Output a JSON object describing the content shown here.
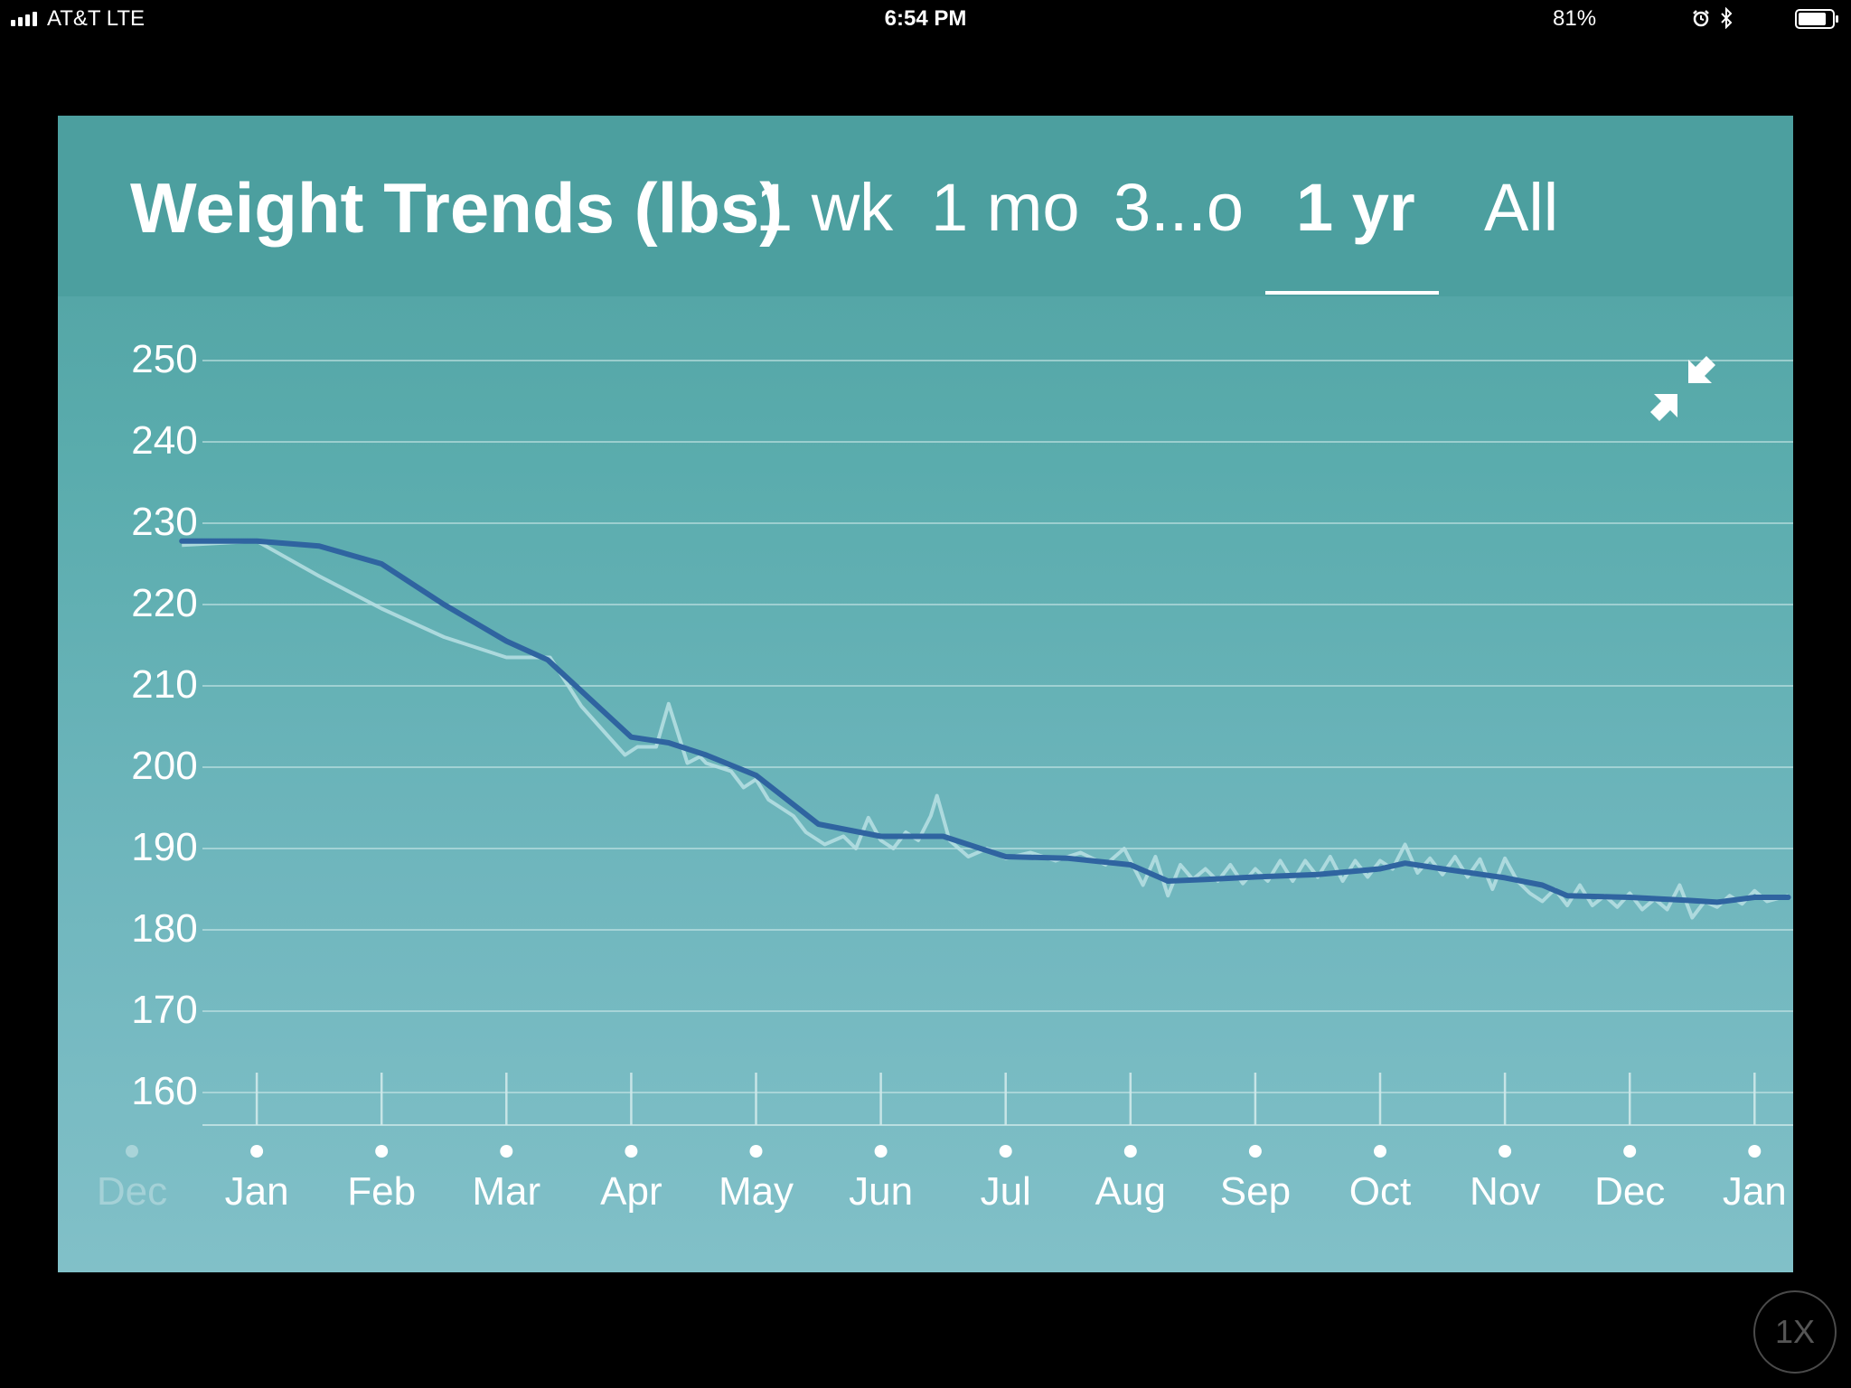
{
  "status_bar": {
    "carrier": "AT&T   LTE",
    "time": "6:54 PM",
    "battery_percent": "81%",
    "icons": [
      "signal-icon",
      "alarm-icon",
      "bluetooth-icon",
      "battery-icon"
    ]
  },
  "header": {
    "title": "Weight Trends (lbs)",
    "tabs": [
      {
        "label": "1 wk",
        "active": false
      },
      {
        "label": "1 mo",
        "active": false
      },
      {
        "label": "3...o",
        "active": false
      },
      {
        "label": "1 yr",
        "active": true
      },
      {
        "label": "All",
        "active": false
      }
    ]
  },
  "controls": {
    "collapse_icon": "collapse-arrows-icon",
    "speed_label": "1X"
  },
  "colors": {
    "header_bg": "#4c9f9f",
    "trend_line": "#2f64a0",
    "raw_line": "#b9e0e4",
    "gridline": "#cfe9ea"
  },
  "chart_data": {
    "type": "line",
    "title": "Weight Trends (lbs)",
    "ylim": [
      160,
      250
    ],
    "yticks": [
      250,
      240,
      230,
      220,
      210,
      200,
      190,
      180,
      170,
      160
    ],
    "x_tick_labels": [
      "Dec",
      "Jan",
      "Feb",
      "Mar",
      "Apr",
      "May",
      "Jun",
      "Jul",
      "Aug",
      "Sep",
      "Oct",
      "Nov",
      "Dec",
      "Jan"
    ],
    "xlim": [
      0.4,
      13.27
    ],
    "grid": true,
    "series": [
      {
        "role": "trend",
        "x": [
          0.4,
          1.0,
          1.5,
          2.0,
          2.5,
          3.0,
          3.33,
          4.0,
          4.3,
          4.6,
          5.0,
          5.5,
          6.0,
          6.5,
          7.0,
          7.5,
          8.0,
          8.3,
          8.6,
          9.0,
          9.5,
          10.0,
          10.2,
          10.5,
          11.0,
          11.3,
          11.5,
          12.0,
          12.5,
          12.7,
          13.0,
          13.27
        ],
        "y": [
          227.8,
          227.8,
          227.2,
          225,
          220,
          215.5,
          213.2,
          203.7,
          203,
          201.5,
          199,
          193,
          191.5,
          191.5,
          189,
          188.8,
          188,
          186,
          186.2,
          186.5,
          186.8,
          187.5,
          188.2,
          187.5,
          186.4,
          185.5,
          184.2,
          184,
          183.6,
          183.4,
          184,
          184
        ]
      },
      {
        "role": "weigh-ins",
        "x": [
          0.4,
          1.0,
          1.5,
          2.0,
          2.5,
          3.0,
          3.35,
          3.6,
          3.95,
          4.05,
          4.2,
          4.3,
          4.45,
          4.55,
          4.6,
          4.8,
          4.9,
          5.0,
          5.1,
          5.2,
          5.3,
          5.4,
          5.55,
          5.7,
          5.8,
          5.9,
          6.0,
          6.1,
          6.2,
          6.3,
          6.4,
          6.45,
          6.55,
          6.7,
          6.85,
          7.0,
          7.2,
          7.4,
          7.6,
          7.8,
          7.95,
          8.1,
          8.2,
          8.3,
          8.4,
          8.5,
          8.6,
          8.7,
          8.8,
          8.9,
          9.0,
          9.1,
          9.2,
          9.3,
          9.4,
          9.5,
          9.6,
          9.7,
          9.8,
          9.9,
          10.0,
          10.1,
          10.2,
          10.3,
          10.4,
          10.5,
          10.6,
          10.7,
          10.8,
          10.9,
          11.0,
          11.1,
          11.2,
          11.3,
          11.4,
          11.5,
          11.6,
          11.7,
          11.8,
          11.9,
          12.0,
          12.1,
          12.2,
          12.3,
          12.4,
          12.5,
          12.6,
          12.7,
          12.8,
          12.9,
          13.0,
          13.1,
          13.27
        ],
        "y": [
          227.3,
          227.8,
          223.5,
          219.5,
          216,
          213.5,
          213.5,
          207.5,
          201.5,
          202.5,
          202.5,
          207.8,
          200.5,
          201.3,
          200.5,
          199.5,
          197.5,
          198.5,
          196,
          195,
          194,
          192,
          190.5,
          191.5,
          190,
          193.8,
          191,
          190,
          192,
          191,
          194,
          196.5,
          191,
          189,
          190,
          188.8,
          189.5,
          188.5,
          189.5,
          188,
          190,
          185.5,
          189,
          184.2,
          188,
          186.2,
          187.5,
          186,
          188,
          185.7,
          187.5,
          186,
          188.5,
          186,
          188.5,
          186.5,
          189,
          186,
          188.5,
          186.5,
          188.5,
          187.5,
          190.5,
          187,
          188.8,
          186.8,
          189,
          186.5,
          188.7,
          185,
          188.8,
          186,
          184.5,
          183.5,
          185,
          183,
          185.5,
          183,
          184.2,
          182.8,
          184.5,
          182.5,
          183.8,
          182.5,
          185.5,
          181.5,
          183.5,
          182.8,
          184.2,
          183.2,
          184.8,
          183.5,
          184.2
        ]
      }
    ]
  }
}
